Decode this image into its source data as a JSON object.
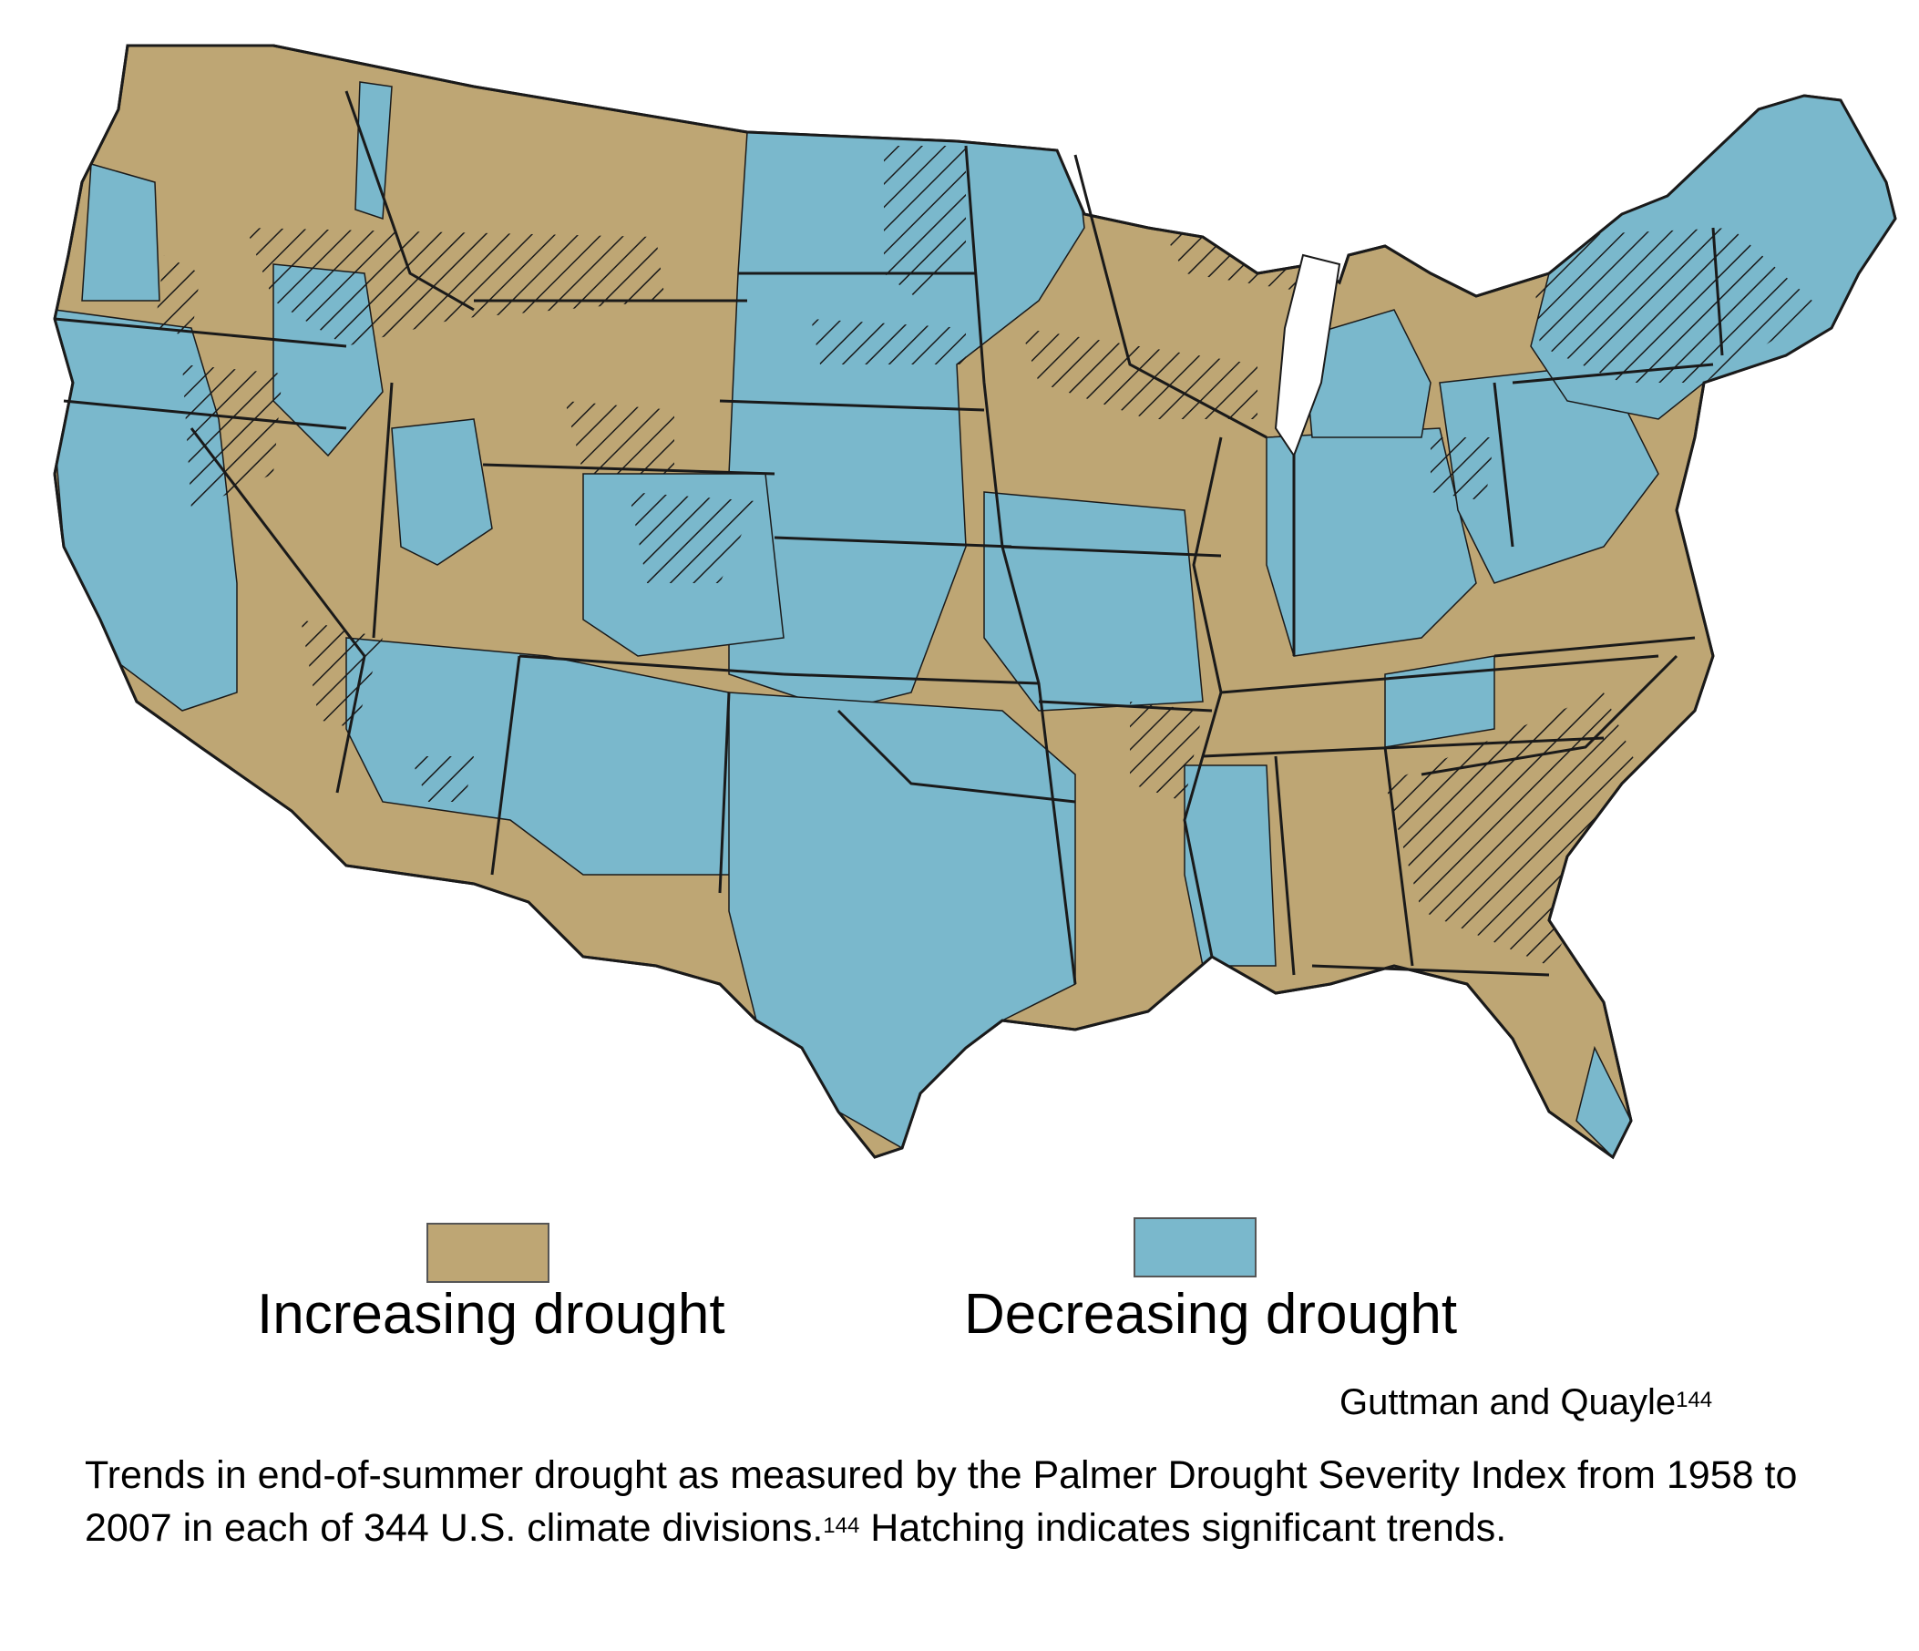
{
  "colors": {
    "increasing": "#bea674",
    "decreasing": "#7ab8cc",
    "border": "#1a1a1a"
  },
  "legend": {
    "increasing_label": "Increasing drought",
    "decreasing_label": "Decreasing drought"
  },
  "source": {
    "text": "Guttman and Quayle",
    "ref": "144"
  },
  "caption": {
    "part1": "Trends in end-of-summer drought as measured by the Palmer Drought Severity Index from 1958 to  2007 in each of 344 U.S. climate divisions.",
    "ref": "144",
    "part2": " Hatching indicates significant trends."
  },
  "map": {
    "icon": "us-climate-divisions-map",
    "hatching_meaning": "significant trends"
  }
}
